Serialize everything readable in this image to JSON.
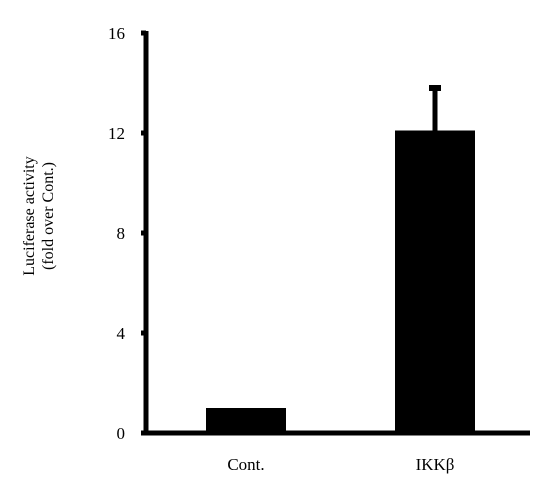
{
  "chart_data": {
    "type": "bar",
    "title": "",
    "categories": [
      "Cont.",
      "IKKβ"
    ],
    "series": [
      {
        "values": [
          1.0,
          12.1
        ],
        "error_plus": [
          0,
          1.7
        ]
      }
    ],
    "ylabel_line1": "Luciferase activity",
    "ylabel_line2": "(fold over Cont.)",
    "xlabel": "",
    "ylim": [
      0,
      16
    ],
    "yticks": [
      "0",
      "4",
      "8",
      "12",
      "16"
    ],
    "grid": false,
    "legend": "none",
    "bar_color": "#000000"
  }
}
